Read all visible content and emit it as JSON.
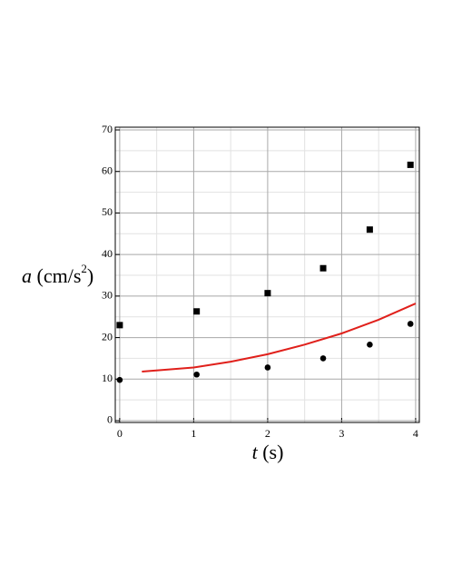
{
  "chart_data": {
    "type": "scatter",
    "x_label": {
      "symbol": "t",
      "unit": "(s)"
    },
    "y_label": {
      "symbol": "a",
      "unit": "(cm/s",
      "exponent": "2",
      "close": ")"
    },
    "xlim": [
      -0.06,
      4.05
    ],
    "ylim": [
      -0.44,
      70.66
    ],
    "xticks": [
      0,
      1,
      2,
      3,
      4
    ],
    "yticks": [
      0,
      10,
      20,
      30,
      40,
      50,
      60,
      70
    ],
    "x_minor_ticks": [
      0.5,
      1.5,
      2.5,
      3.5
    ],
    "y_minor_ticks": [
      5,
      15,
      25,
      35,
      45,
      55,
      65
    ],
    "grid": true,
    "series": [
      {
        "mode": "markers",
        "marker": "square",
        "color": "#000000",
        "x": [
          0,
          1.04,
          2,
          2.75,
          3.38,
          3.93
        ],
        "values": [
          23,
          26.3,
          30.7,
          36.7,
          46,
          61.6
        ]
      },
      {
        "mode": "markers",
        "marker": "circle",
        "color": "#000000",
        "x": [
          0,
          1.04,
          2,
          2.75,
          3.38,
          3.93
        ],
        "values": [
          9.8,
          11.1,
          12.8,
          15,
          18.3,
          23.3
        ]
      },
      {
        "mode": "line",
        "color": "#e0201b",
        "x": [
          0.3,
          1,
          1.5,
          2,
          2.5,
          3,
          3.5,
          4
        ],
        "values": [
          11.8,
          12.8,
          14.2,
          16,
          18.3,
          21,
          24.3,
          28.2
        ]
      }
    ]
  }
}
